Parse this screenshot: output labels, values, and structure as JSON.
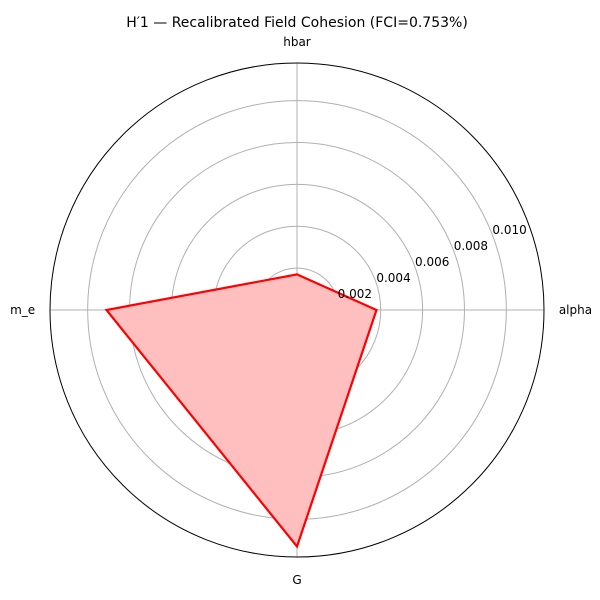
{
  "chart_data": {
    "type": "radar",
    "title": "H′1 — Recalibrated Field Cohesion (FCI=0.753%)",
    "axes": [
      "alpha",
      "hbar",
      "m_e",
      "G"
    ],
    "series": [
      {
        "values": [
          0.0038,
          0.0017,
          0.0091,
          0.0113
        ]
      }
    ],
    "rlim": [
      0,
      0.0118
    ],
    "ticks": [
      0.002,
      0.004,
      0.006,
      0.008,
      0.01
    ],
    "tick_labels": [
      "0.002",
      "0.004",
      "0.006",
      "0.008",
      "0.010"
    ],
    "grid": true,
    "colors": {
      "line": "#ff0000",
      "fill": "#ffbfbf",
      "grid": "#b0b0b0",
      "frame": "#000000"
    }
  }
}
